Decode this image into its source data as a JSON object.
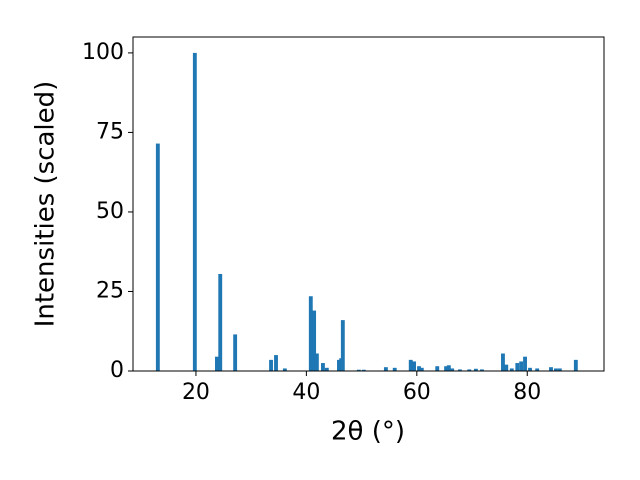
{
  "chart_data": {
    "type": "bar",
    "xlabel": "2θ (°)",
    "ylabel": "Intensities (scaled)",
    "x": [
      13.1,
      19.8,
      23.8,
      24.4,
      27.1,
      33.6,
      34.5,
      36.1,
      40.8,
      41.4,
      41.9,
      43.0,
      43.7,
      45.9,
      46.3,
      46.6,
      49.5,
      50.4,
      54.4,
      56.0,
      58.9,
      59.5,
      60.4,
      60.9,
      63.7,
      65.3,
      65.8,
      66.4,
      67.8,
      69.5,
      70.7,
      71.8,
      75.6,
      76.2,
      77.2,
      78.2,
      78.9,
      79.6,
      80.5,
      81.8,
      84.3,
      85.2,
      85.9,
      88.8
    ],
    "values": [
      71.5,
      100,
      4.5,
      30.5,
      11.5,
      3.5,
      5,
      0.8,
      23.5,
      19,
      5.5,
      2.5,
      1,
      3.5,
      4,
      16,
      0.4,
      0.4,
      1.2,
      1,
      3.5,
      3,
      1.5,
      1,
      1.5,
      1.5,
      1.8,
      0.8,
      0.5,
      0.5,
      0.7,
      0.5,
      5.5,
      2,
      0.8,
      2.5,
      3,
      4.5,
      1,
      0.8,
      1.2,
      0.8,
      0.8,
      3.5
    ],
    "color": "#1f77b4",
    "xlim": [
      8.6,
      93.9
    ],
    "xticks": [
      20,
      40,
      60,
      80
    ],
    "ylim": [
      0,
      105
    ],
    "yticks": [
      0,
      25,
      50,
      75,
      100
    ],
    "grid": false
  }
}
